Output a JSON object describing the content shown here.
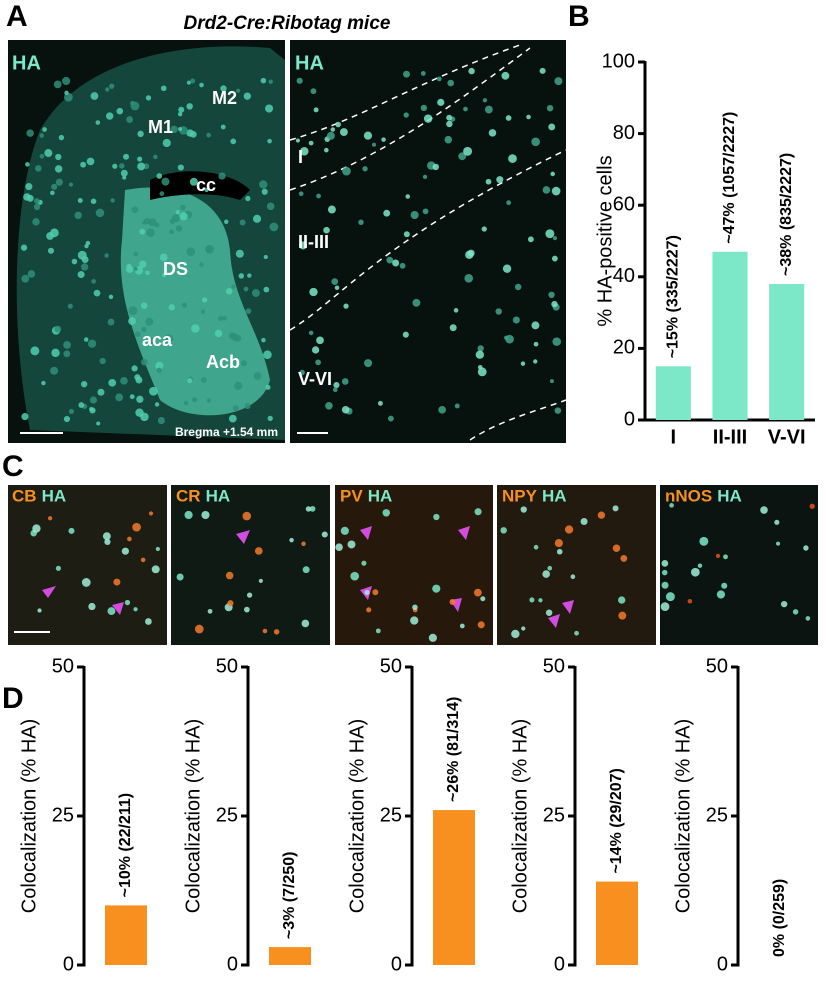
{
  "panel_labels": [
    "A",
    "B",
    "C",
    "D"
  ],
  "panel_a": {
    "title": "Drd2-Cre:Ribotag mice",
    "left_image": {
      "channel": "HA",
      "regions": [
        "M1",
        "M2",
        "cc",
        "DS",
        "aca",
        "Acb"
      ],
      "note": "Bregma +1.54 mm"
    },
    "right_image": {
      "channel": "HA",
      "layers": [
        "I",
        "II-III",
        "V-VI"
      ]
    }
  },
  "panel_c": {
    "images": [
      {
        "marker": "CB",
        "channel": "HA"
      },
      {
        "marker": "CR",
        "channel": "HA"
      },
      {
        "marker": "PV",
        "channel": "HA"
      },
      {
        "marker": "NPY",
        "channel": "HA"
      },
      {
        "marker": "nNOS",
        "channel": "HA"
      }
    ]
  },
  "chart_data": [
    {
      "type": "bar",
      "ylabel": "% HA-positive cells",
      "categories": [
        "I",
        "II-III",
        "V-VI"
      ],
      "values": [
        15,
        47,
        38
      ],
      "value_labels": [
        "~15% (335/2227)",
        "~47% (1057/2227)",
        "~38% (835/2227)"
      ],
      "color": "#7de8c8",
      "ylim": [
        0,
        100
      ],
      "yticks": [
        0,
        20,
        40,
        60,
        80,
        100
      ]
    },
    {
      "type": "bar",
      "ylabel": "Colocalization (% HA)",
      "categories": [
        null
      ],
      "values": [
        10
      ],
      "value_labels": [
        "~10% (22/211)"
      ],
      "color": "#f7901e",
      "ylim": [
        0,
        50
      ],
      "yticks": [
        0,
        25,
        50
      ]
    },
    {
      "type": "bar",
      "ylabel": "Colocalization (% HA)",
      "categories": [
        null
      ],
      "values": [
        3
      ],
      "value_labels": [
        "~3% (7/250)"
      ],
      "color": "#f7901e",
      "ylim": [
        0,
        50
      ],
      "yticks": [
        0,
        25,
        50
      ]
    },
    {
      "type": "bar",
      "ylabel": "Colocalization (% HA)",
      "categories": [
        null
      ],
      "values": [
        26
      ],
      "value_labels": [
        "~26% (81/314)"
      ],
      "color": "#f7901e",
      "ylim": [
        0,
        50
      ],
      "yticks": [
        0,
        25,
        50
      ]
    },
    {
      "type": "bar",
      "ylabel": "Colocalization (% HA)",
      "categories": [
        null
      ],
      "values": [
        14
      ],
      "value_labels": [
        "~14% (29/207)"
      ],
      "color": "#f7901e",
      "ylim": [
        0,
        50
      ],
      "yticks": [
        0,
        25,
        50
      ]
    },
    {
      "type": "bar",
      "ylabel": "Colocalization (% HA)",
      "categories": [
        null
      ],
      "values": [
        0
      ],
      "value_labels": [
        "0% (0/259)"
      ],
      "color": "#f7901e",
      "ylim": [
        0,
        50
      ],
      "yticks": [
        0,
        25,
        50
      ]
    }
  ]
}
